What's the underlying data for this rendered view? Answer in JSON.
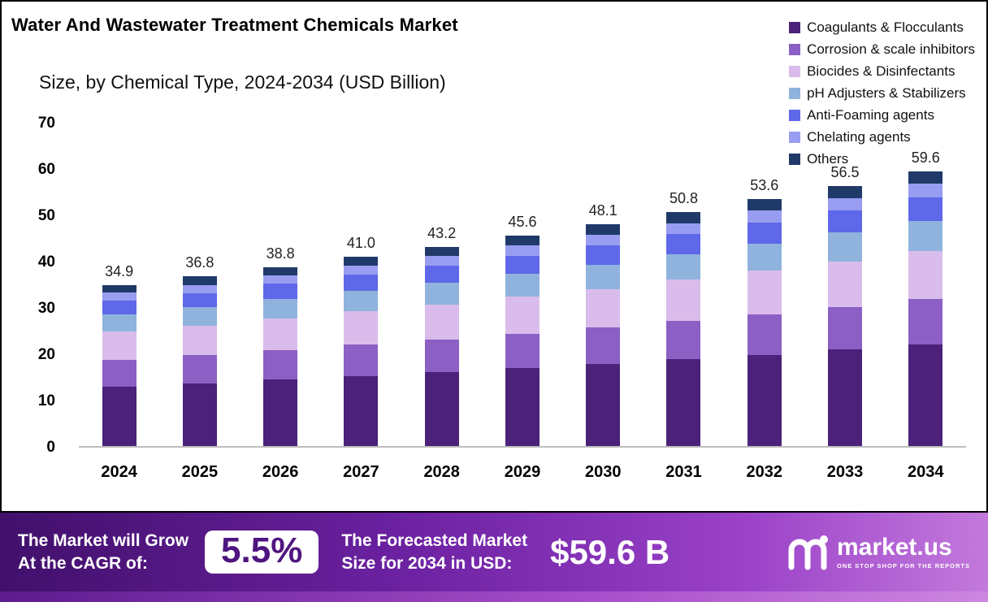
{
  "title_line1": "Water And Wastewater Treatment Chemicals Market",
  "title_line2": "Size, by  Chemical Type, 2024-2034 (USD Billion)",
  "chart_data": {
    "type": "bar",
    "stacked": true,
    "title": "Water And Wastewater Treatment Chemicals Market Size, by Chemical Type, 2024-2034 (USD Billion)",
    "xlabel": "",
    "ylabel": "",
    "ylim": [
      0,
      70
    ],
    "yticks": [
      0,
      10,
      20,
      30,
      40,
      50,
      60,
      70
    ],
    "grid": false,
    "legend_position": "top-right",
    "categories": [
      "2024",
      "2025",
      "2026",
      "2027",
      "2028",
      "2029",
      "2030",
      "2031",
      "2032",
      "2033",
      "2034"
    ],
    "totals": [
      34.9,
      36.8,
      38.8,
      41.0,
      43.2,
      45.6,
      48.1,
      50.8,
      53.6,
      56.5,
      59.6
    ],
    "series": [
      {
        "name": "Coagulants & Flocculants",
        "color": "#4B2179",
        "values": [
          12.9,
          13.6,
          14.4,
          15.2,
          16.0,
          16.9,
          17.8,
          18.8,
          19.8,
          20.9,
          22.1
        ]
      },
      {
        "name": "Corrosion & scale inhibitors",
        "color": "#8C5FC4",
        "values": [
          5.8,
          6.1,
          6.4,
          6.8,
          7.1,
          7.5,
          7.9,
          8.4,
          8.8,
          9.3,
          9.8
        ]
      },
      {
        "name": "Biocides & Disinfectants",
        "color": "#D9BCEB",
        "values": [
          6.1,
          6.4,
          6.8,
          7.2,
          7.6,
          8.0,
          8.4,
          8.9,
          9.4,
          9.9,
          10.4
        ]
      },
      {
        "name": "pH Adjusters & Stabilizers",
        "color": "#8FB3DC",
        "values": [
          3.8,
          4.0,
          4.3,
          4.5,
          4.8,
          5.0,
          5.3,
          5.6,
          5.9,
          6.2,
          6.6
        ]
      },
      {
        "name": "Anti-Foaming agents",
        "color": "#5E68E8",
        "values": [
          3.0,
          3.1,
          3.3,
          3.5,
          3.7,
          3.9,
          4.1,
          4.3,
          4.6,
          4.8,
          5.1
        ]
      },
      {
        "name": "Chelating agents",
        "color": "#989DF1",
        "values": [
          1.7,
          1.8,
          1.9,
          2.0,
          2.1,
          2.2,
          2.3,
          2.4,
          2.6,
          2.7,
          2.9
        ]
      },
      {
        "name": "Others",
        "color": "#1F3A68",
        "values": [
          1.6,
          1.8,
          1.7,
          1.8,
          1.9,
          2.1,
          2.3,
          2.4,
          2.5,
          2.7,
          2.7
        ]
      }
    ]
  },
  "banner": {
    "cagr_label_line1": "The Market will Grow",
    "cagr_label_line2": "At the CAGR of:",
    "cagr_value": "5.5%",
    "forecast_label_line1": "The Forecasted Market",
    "forecast_label_line2": "Size for 2034 in USD:",
    "forecast_value": "$59.6 B",
    "brand": "market.us",
    "brand_tagline": "ONE STOP SHOP FOR THE REPORTS"
  },
  "colors": {
    "banner_gradient_start": "#41106B",
    "banner_gradient_end": "#C379DC",
    "cagr_text": "#4F1580",
    "panel_border": "#000000"
  }
}
